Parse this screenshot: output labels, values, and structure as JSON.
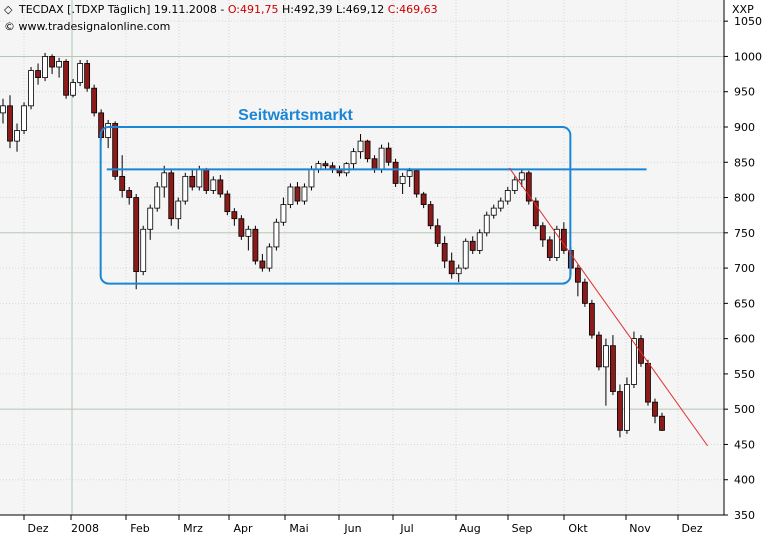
{
  "header": {
    "bullet": "◇",
    "prefix": "TECDAX [.TDXP  Täglich] 19.11.2008 - ",
    "open": "O:491,75",
    "mid": " H:492,39 L:469,12 ",
    "close": "C:469,63",
    "copyright": "© www.tradesignalonline.com",
    "symbol_right": "XXP"
  },
  "colors": {
    "up": "#ffffff",
    "down": "#8b1a1a",
    "outline": "#000000",
    "annotation": "#1a86d8",
    "trendline": "#e03030",
    "grid": "#b5c7b5",
    "plot_bg": "#f5f5f5"
  },
  "chart_data": {
    "type": "candlestick",
    "ylim": [
      350,
      1080
    ],
    "y_ticks": [
      350,
      400,
      450,
      500,
      550,
      600,
      650,
      700,
      750,
      800,
      850,
      900,
      950,
      1000,
      1050
    ],
    "x_labels": [
      "Dez",
      "2008",
      "Feb",
      "Mrz",
      "Apr",
      "Mai",
      "Jun",
      "Jul",
      "Aug",
      "Sep",
      "Okt",
      "Nov",
      "Dez"
    ],
    "series": [
      {
        "values": [
          [
            920,
            940,
            905,
            930
          ],
          [
            930,
            945,
            870,
            880
          ],
          [
            880,
            905,
            865,
            895
          ],
          [
            895,
            935,
            890,
            930
          ],
          [
            930,
            985,
            925,
            980
          ],
          [
            980,
            990,
            960,
            970
          ],
          [
            970,
            1005,
            965,
            1000
          ],
          [
            1000,
            1003,
            975,
            985
          ],
          [
            985,
            998,
            970,
            993
          ],
          [
            993,
            996,
            940,
            945
          ],
          [
            945,
            968,
            942,
            963
          ],
          [
            963,
            995,
            958,
            990
          ],
          [
            990,
            995,
            950,
            955
          ],
          [
            955,
            960,
            915,
            920
          ],
          [
            920,
            925,
            880,
            885
          ],
          [
            885,
            910,
            870,
            905
          ],
          [
            905,
            908,
            825,
            830
          ],
          [
            830,
            860,
            800,
            810
          ],
          [
            810,
            815,
            790,
            800
          ],
          [
            800,
            805,
            670,
            695
          ],
          [
            695,
            760,
            690,
            755
          ],
          [
            755,
            790,
            740,
            785
          ],
          [
            785,
            822,
            780,
            815
          ],
          [
            815,
            845,
            800,
            835
          ],
          [
            835,
            840,
            760,
            770
          ],
          [
            770,
            800,
            755,
            795
          ],
          [
            795,
            835,
            790,
            830
          ],
          [
            830,
            840,
            810,
            815
          ],
          [
            815,
            845,
            810,
            840
          ],
          [
            840,
            842,
            805,
            810
          ],
          [
            810,
            830,
            805,
            825
          ],
          [
            825,
            832,
            800,
            805
          ],
          [
            805,
            810,
            775,
            780
          ],
          [
            780,
            785,
            760,
            770
          ],
          [
            770,
            775,
            740,
            745
          ],
          [
            745,
            760,
            725,
            755
          ],
          [
            755,
            760,
            705,
            710
          ],
          [
            710,
            720,
            695,
            700
          ],
          [
            700,
            735,
            695,
            730
          ],
          [
            730,
            770,
            725,
            765
          ],
          [
            765,
            800,
            760,
            790
          ],
          [
            790,
            820,
            785,
            815
          ],
          [
            815,
            822,
            790,
            795
          ],
          [
            795,
            820,
            790,
            815
          ],
          [
            815,
            845,
            810,
            840
          ],
          [
            840,
            852,
            835,
            848
          ],
          [
            848,
            852,
            840,
            845
          ],
          [
            845,
            850,
            835,
            840
          ],
          [
            840,
            845,
            830,
            835
          ],
          [
            835,
            850,
            830,
            848
          ],
          [
            848,
            870,
            840,
            865
          ],
          [
            865,
            890,
            855,
            880
          ],
          [
            880,
            882,
            850,
            855
          ],
          [
            855,
            860,
            835,
            840
          ],
          [
            840,
            875,
            835,
            870
          ],
          [
            870,
            878,
            845,
            850
          ],
          [
            850,
            855,
            815,
            820
          ],
          [
            820,
            835,
            805,
            830
          ],
          [
            830,
            842,
            815,
            838
          ],
          [
            838,
            840,
            800,
            805
          ],
          [
            805,
            808,
            785,
            790
          ],
          [
            790,
            795,
            755,
            760
          ],
          [
            760,
            770,
            730,
            735
          ],
          [
            735,
            745,
            700,
            710
          ],
          [
            710,
            722,
            685,
            692
          ],
          [
            692,
            705,
            680,
            700
          ],
          [
            700,
            742,
            698,
            738
          ],
          [
            738,
            745,
            720,
            725
          ],
          [
            725,
            755,
            720,
            750
          ],
          [
            750,
            780,
            745,
            775
          ],
          [
            775,
            790,
            770,
            785
          ],
          [
            785,
            800,
            780,
            795
          ],
          [
            795,
            815,
            790,
            810
          ],
          [
            810,
            830,
            805,
            825
          ],
          [
            825,
            840,
            815,
            835
          ],
          [
            835,
            838,
            790,
            795
          ],
          [
            795,
            800,
            755,
            760
          ],
          [
            760,
            765,
            730,
            740
          ],
          [
            740,
            745,
            710,
            715
          ],
          [
            715,
            760,
            710,
            755
          ],
          [
            755,
            765,
            720,
            725
          ],
          [
            725,
            730,
            690,
            700
          ],
          [
            700,
            705,
            660,
            680
          ],
          [
            680,
            685,
            645,
            650
          ],
          [
            650,
            655,
            600,
            605
          ],
          [
            605,
            610,
            555,
            560
          ],
          [
            560,
            600,
            505,
            590
          ],
          [
            590,
            605,
            520,
            525
          ],
          [
            525,
            535,
            460,
            470
          ],
          [
            470,
            545,
            465,
            535
          ],
          [
            535,
            610,
            530,
            600
          ],
          [
            600,
            605,
            560,
            565
          ],
          [
            565,
            570,
            505,
            510
          ],
          [
            510,
            515,
            480,
            490
          ],
          [
            490,
            495,
            469,
            470
          ]
        ]
      }
    ],
    "annotations": {
      "label": "Seitwärtsmarkt",
      "box": {
        "date_from": 0.165,
        "date_to": 0.935,
        "top": 900,
        "bottom": 678
      },
      "resistance": {
        "from": 0.175,
        "to": 1.06,
        "level": 840
      },
      "trendline": {
        "from": [
          0.835,
          842
        ],
        "to": [
          1.16,
          448
        ]
      }
    }
  }
}
